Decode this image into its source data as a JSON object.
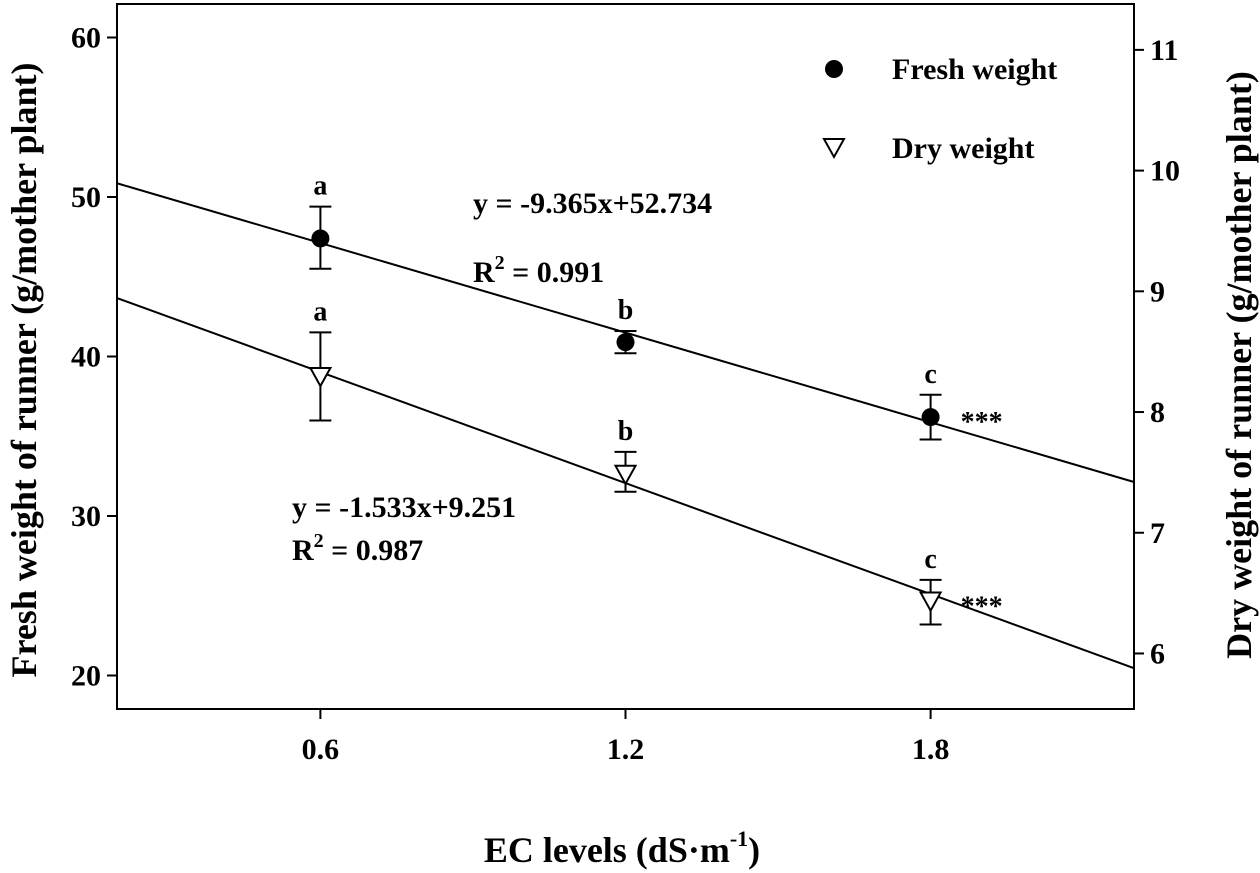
{
  "chart_data": {
    "type": "scatter",
    "x_axis": {
      "label_main": "EC levels (dS·m",
      "label_sup": "-1",
      "label_end": ")",
      "ticks": [
        0.6,
        1.2,
        1.8
      ],
      "tick_labels": [
        "0.6",
        "1.2",
        "1.8"
      ],
      "range": [
        0.2,
        2.2
      ]
    },
    "y_left": {
      "label": "Fresh weight of runner (g/mother plant)",
      "ticks": [
        20,
        30,
        40,
        50,
        60
      ],
      "tick_labels": [
        "20",
        "30",
        "40",
        "50",
        "60"
      ],
      "range": [
        17.9,
        62.1
      ]
    },
    "y_right": {
      "label": "Dry weight of runner (g/mother plant)",
      "ticks": [
        6,
        7,
        8,
        9,
        10,
        11
      ],
      "tick_labels": [
        "6",
        "7",
        "8",
        "9",
        "10",
        "11"
      ],
      "range": [
        5.54,
        11.38
      ]
    },
    "series": [
      {
        "name": "Fresh weight",
        "marker": "filled-circle",
        "axis": "left",
        "x": [
          0.6,
          1.2,
          1.8
        ],
        "y": [
          47.4,
          40.9,
          36.2
        ],
        "err_upper": [
          49.4,
          41.6,
          37.6
        ],
        "err_lower": [
          45.5,
          40.2,
          34.8
        ],
        "letters": [
          "a",
          "b",
          "c"
        ],
        "significance": "***",
        "fit": {
          "slope": -9.365,
          "intercept": 52.734
        },
        "equation": "y = -9.365x+52.734",
        "r2_prefix": "R",
        "r2_exp": "2",
        "r2_value": " = 0.991"
      },
      {
        "name": "Dry weight",
        "marker": "open-triangle-down",
        "axis": "right",
        "x": [
          0.6,
          1.2,
          1.8
        ],
        "y": [
          8.29,
          7.48,
          6.43
        ],
        "err_upper": [
          8.66,
          7.67,
          6.61
        ],
        "err_lower": [
          7.93,
          7.34,
          6.24
        ],
        "letters": [
          "a",
          "b",
          "c"
        ],
        "significance": "***",
        "fit": {
          "slope": -1.533,
          "intercept": 9.251
        },
        "equation": "y = -1.533x+9.251",
        "r2_prefix": "R",
        "r2_exp": "2",
        "r2_value": " = 0.987"
      }
    ],
    "legend": {
      "position": "top-right",
      "entries": [
        "Fresh weight",
        "Dry weight"
      ]
    },
    "grid": false
  }
}
